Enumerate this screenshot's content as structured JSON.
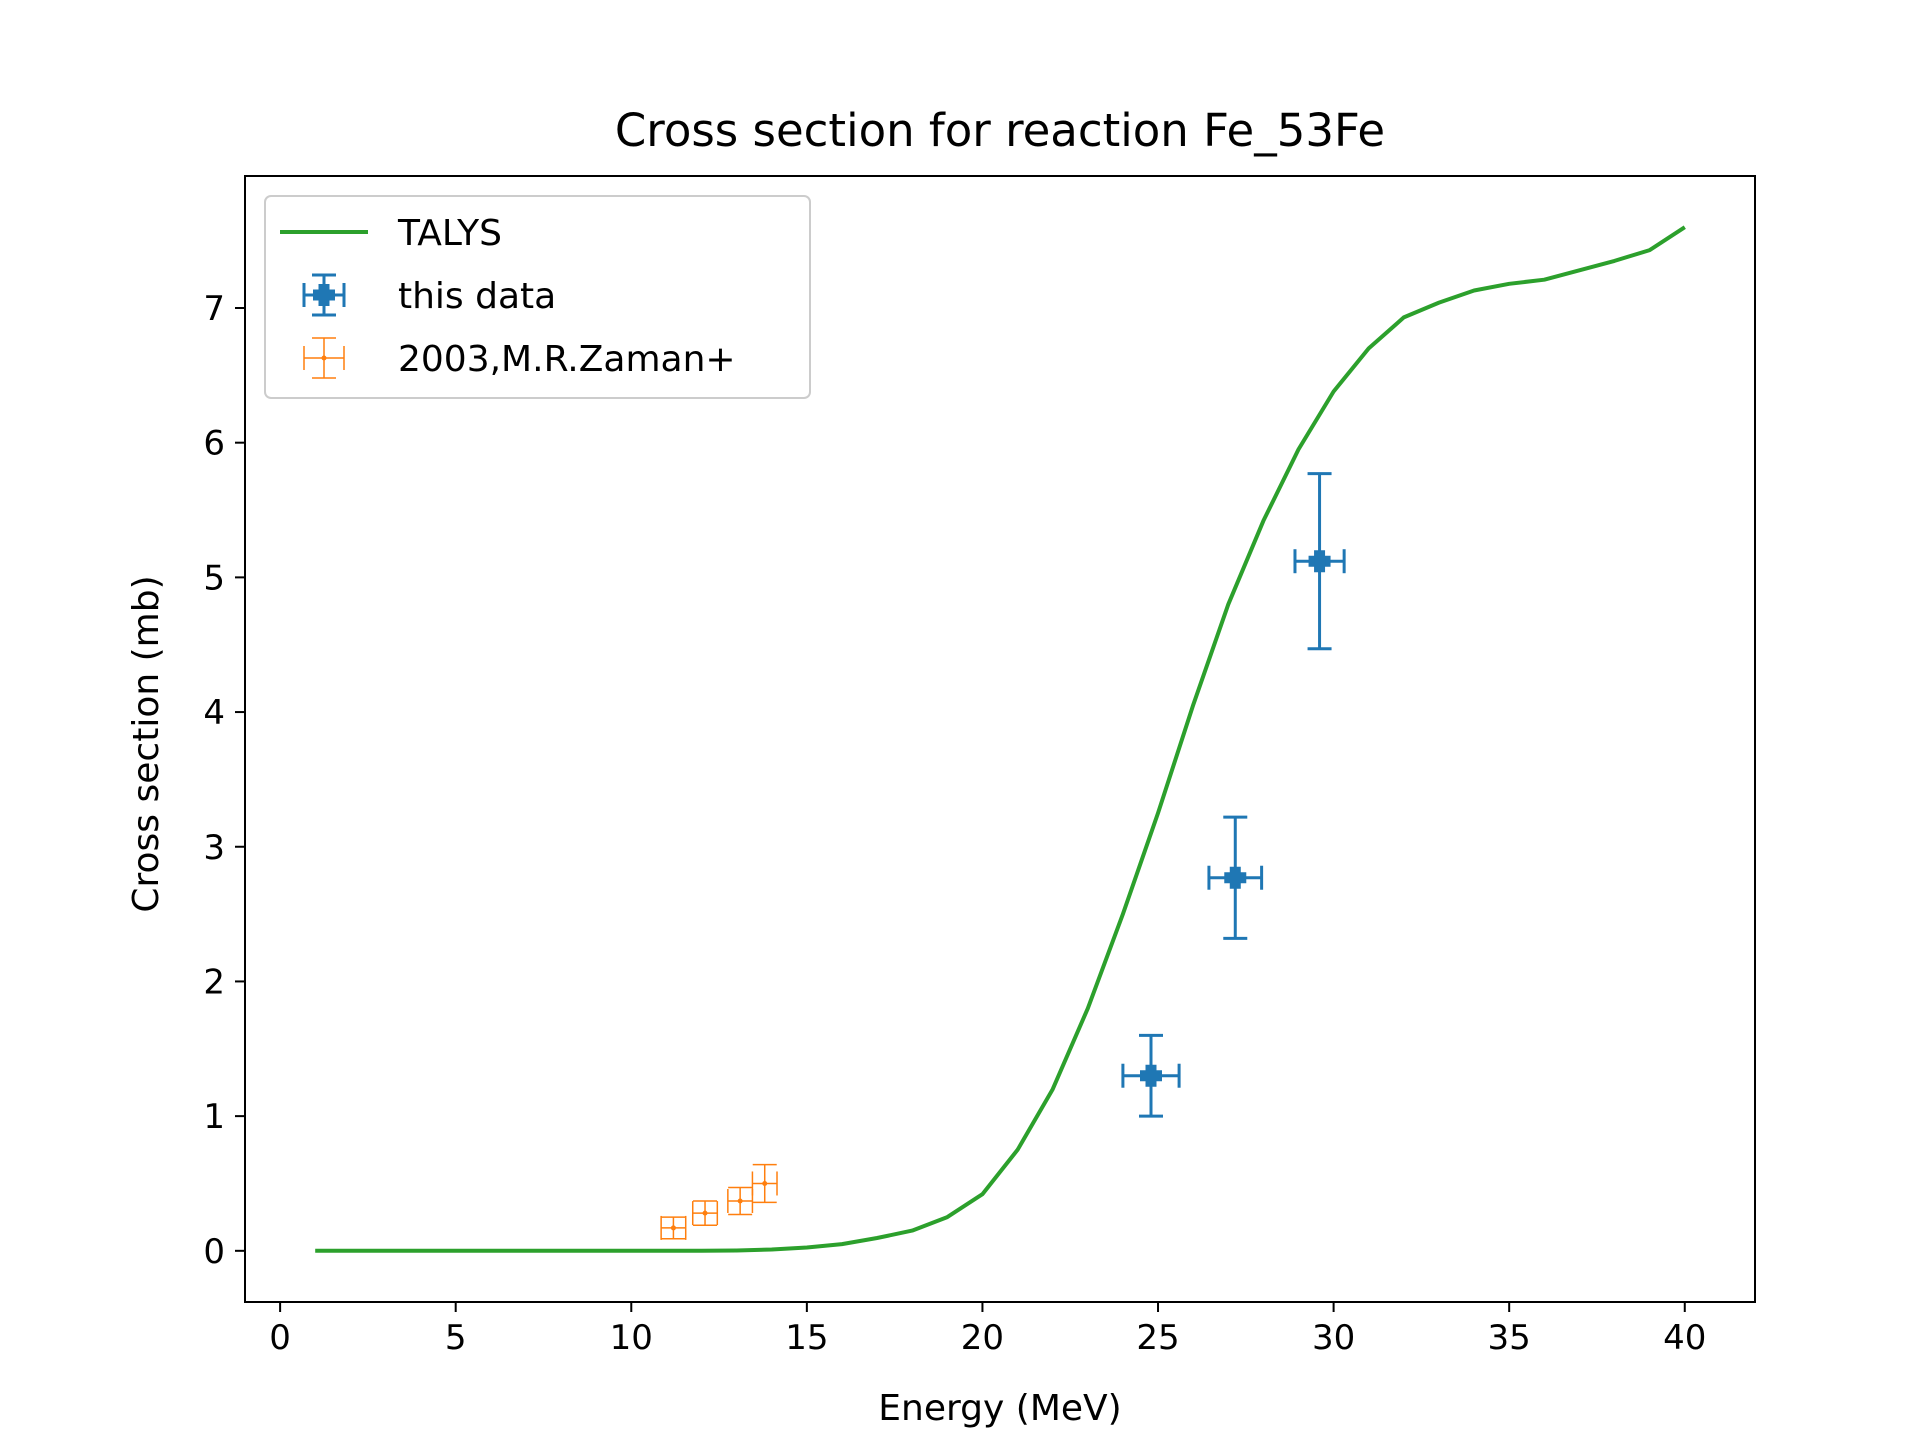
{
  "chart_data": {
    "type": "line",
    "title": "Cross section for reaction Fe_53Fe",
    "xlabel": "Energy (MeV)",
    "ylabel": "Cross section (mb)",
    "xlim": [
      -1,
      42
    ],
    "ylim": [
      -0.38,
      7.98
    ],
    "xticks": [
      0,
      5,
      10,
      15,
      20,
      25,
      30,
      35,
      40
    ],
    "yticks": [
      0,
      1,
      2,
      3,
      4,
      5,
      6,
      7
    ],
    "grid": false,
    "legend_position": "top-left",
    "colors": {
      "talys": "#2ca02c",
      "this_data": "#1f77b4",
      "zaman": "#ff7f0e"
    },
    "series": [
      {
        "name": "TALYS",
        "kind": "line",
        "x": [
          1,
          2,
          3,
          4,
          5,
          6,
          7,
          8,
          9,
          10,
          11,
          12,
          13,
          14,
          15,
          16,
          17,
          18,
          19,
          20,
          21,
          22,
          23,
          24,
          25,
          26,
          27,
          28,
          29,
          30,
          31,
          32,
          33,
          34,
          35,
          36,
          37,
          38,
          39,
          40
        ],
        "y": [
          0,
          0,
          0,
          0,
          0,
          0,
          0,
          0,
          0,
          0,
          0,
          0,
          0.002,
          0.01,
          0.025,
          0.05,
          0.095,
          0.15,
          0.25,
          0.42,
          0.75,
          1.2,
          1.8,
          2.5,
          3.25,
          4.05,
          4.8,
          5.42,
          5.95,
          6.38,
          6.7,
          6.93,
          7.04,
          7.13,
          7.18,
          7.21,
          7.28,
          7.35,
          7.43,
          7.6
        ]
      },
      {
        "name": "this data",
        "kind": "errorbar",
        "points": [
          {
            "x": 24.8,
            "y": 1.3,
            "xerr": 0.8,
            "yerr": 0.3
          },
          {
            "x": 27.2,
            "y": 2.77,
            "xerr": 0.75,
            "yerr": 0.45
          },
          {
            "x": 29.6,
            "y": 5.12,
            "xerr": 0.7,
            "yerr": 0.65
          }
        ]
      },
      {
        "name": "2003,M.R.Zaman+",
        "kind": "errorbar",
        "points": [
          {
            "x": 11.2,
            "y": 0.17,
            "xerr": 0.35,
            "yerr": 0.08
          },
          {
            "x": 12.1,
            "y": 0.28,
            "xerr": 0.35,
            "yerr": 0.09
          },
          {
            "x": 13.1,
            "y": 0.37,
            "xerr": 0.35,
            "yerr": 0.1
          },
          {
            "x": 13.8,
            "y": 0.5,
            "xerr": 0.35,
            "yerr": 0.14
          }
        ]
      }
    ]
  }
}
